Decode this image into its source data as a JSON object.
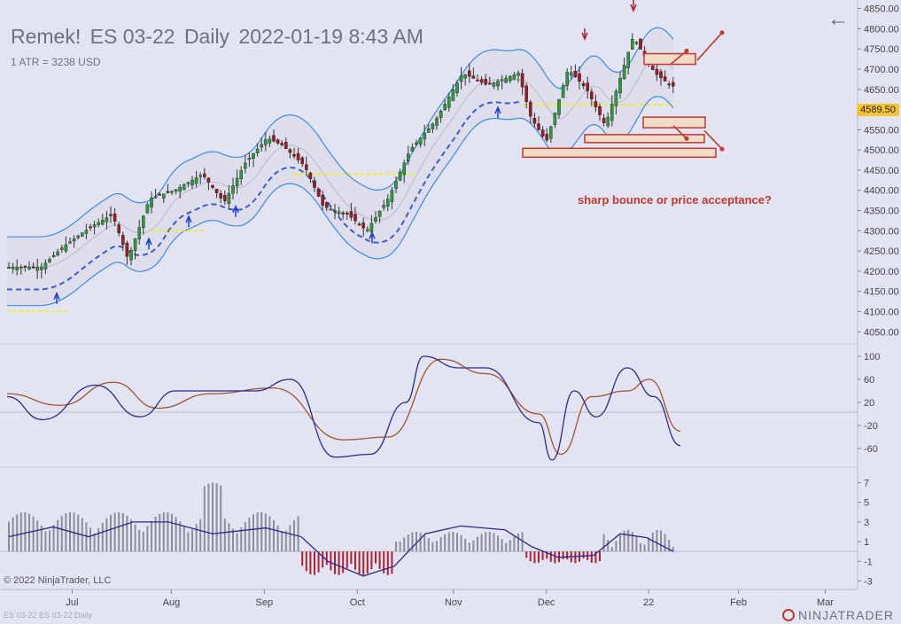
{
  "header": {
    "title_parts": [
      "Remek!",
      "ES 03-22",
      "Daily",
      "2022-01-19 8:43 AM"
    ],
    "atr": "1 ATR = 3238 USD"
  },
  "footer": {
    "copyright": "© 2022 NinjaTrader, LLC",
    "series_label": "ES 03-22 ES 03-22 Daily",
    "logo": "NINJATRADER"
  },
  "icons": {
    "back": "back-arrow-icon",
    "logo": "ninjatrader-logo-icon"
  },
  "colors": {
    "background": "#e3e4f3",
    "up_candle": "#2e9a3e",
    "down_candle": "#9b1c22",
    "keltner_band": "#3a8be6",
    "trail_stop": "#3b5bd0",
    "value_line": "#f5ec28",
    "oscillator_fast": "#2a2a8a",
    "oscillator_slow": "#a0542a",
    "histogram_up": "#8d8d9a",
    "histogram_down": "#b02030",
    "annotation": "#c0392b"
  },
  "chart_data": [
    {
      "type": "candlestick",
      "panel": "price",
      "ylim": [
        4020,
        4860
      ],
      "yticks": [
        4050,
        4100,
        4150,
        4200,
        4250,
        4300,
        4350,
        4400,
        4450,
        4500,
        4550,
        4600,
        4650,
        4700,
        4750,
        4800,
        4850
      ],
      "xticks": [
        "Jul",
        "Aug",
        "Sep",
        "Oct",
        "Nov",
        "Dec",
        "22",
        "Feb",
        "Mar"
      ],
      "last_price": "4589.50",
      "annotation": "sharp bounce or price acceptance?",
      "close_path": [
        [
          "2021-06-21",
          4210
        ],
        [
          "2021-06-28",
          4260
        ],
        [
          "2021-07-07",
          4310
        ],
        [
          "2021-07-14",
          4340
        ],
        [
          "2021-07-19",
          4230
        ],
        [
          "2021-07-26",
          4380
        ],
        [
          "2021-08-03",
          4400
        ],
        [
          "2021-08-12",
          4440
        ],
        [
          "2021-08-19",
          4370
        ],
        [
          "2021-08-26",
          4470
        ],
        [
          "2021-09-02",
          4530
        ],
        [
          "2021-09-07",
          4510
        ],
        [
          "2021-09-14",
          4460
        ],
        [
          "2021-09-20",
          4360
        ],
        [
          "2021-09-28",
          4340
        ],
        [
          "2021-10-04",
          4300
        ],
        [
          "2021-10-11",
          4380
        ],
        [
          "2021-10-18",
          4500
        ],
        [
          "2021-10-26",
          4570
        ],
        [
          "2021-11-04",
          4690
        ],
        [
          "2021-11-12",
          4660
        ],
        [
          "2021-11-22",
          4690
        ],
        [
          "2021-11-26",
          4580
        ],
        [
          "2021-12-01",
          4520
        ],
        [
          "2021-12-08",
          4700
        ],
        [
          "2021-12-14",
          4650
        ],
        [
          "2021-12-20",
          4560
        ],
        [
          "2021-12-29",
          4780
        ],
        [
          "2022-01-05",
          4690
        ],
        [
          "2022-01-10",
          4660
        ],
        [
          "2022-01-14",
          4650
        ],
        [
          "2022-01-18",
          4570
        ],
        [
          "2022-01-19",
          4590
        ]
      ]
    },
    {
      "type": "line",
      "panel": "oscillator",
      "yticks": [
        100,
        60,
        20,
        -20,
        -60
      ],
      "series": [
        {
          "name": "",
          "values": [
            [
              0,
              30
            ],
            [
              40,
              -10
            ],
            [
              100,
              50
            ],
            [
              150,
              -5
            ],
            [
              190,
              40
            ],
            [
              230,
              40
            ],
            [
              280,
              40
            ],
            [
              320,
              60
            ],
            [
              370,
              -75
            ],
            [
              410,
              -70
            ],
            [
              450,
              20
            ],
            [
              470,
              100
            ],
            [
              510,
              80
            ],
            [
              540,
              80
            ],
            [
              600,
              -15
            ],
            [
              615,
              -80
            ],
            [
              640,
              40
            ],
            [
              665,
              -5
            ],
            [
              700,
              80
            ],
            [
              730,
              30
            ],
            [
              760,
              -55
            ]
          ]
        },
        {
          "name": "",
          "values": [
            [
              0,
              35
            ],
            [
              60,
              15
            ],
            [
              120,
              55
            ],
            [
              170,
              10
            ],
            [
              230,
              35
            ],
            [
              300,
              45
            ],
            [
              380,
              -45
            ],
            [
              430,
              -40
            ],
            [
              490,
              95
            ],
            [
              540,
              70
            ],
            [
              600,
              0
            ],
            [
              625,
              -70
            ],
            [
              660,
              30
            ],
            [
              700,
              40
            ],
            [
              725,
              60
            ],
            [
              760,
              -30
            ]
          ]
        }
      ]
    },
    {
      "type": "bar",
      "panel": "histogram",
      "yticks": [
        7,
        5,
        3,
        1,
        -1,
        -3
      ],
      "bars_up_range": [
        "Jul",
        "Sep"
      ],
      "bars_down_range": [
        "Sep",
        "Oct"
      ],
      "overlay_line": true
    }
  ]
}
